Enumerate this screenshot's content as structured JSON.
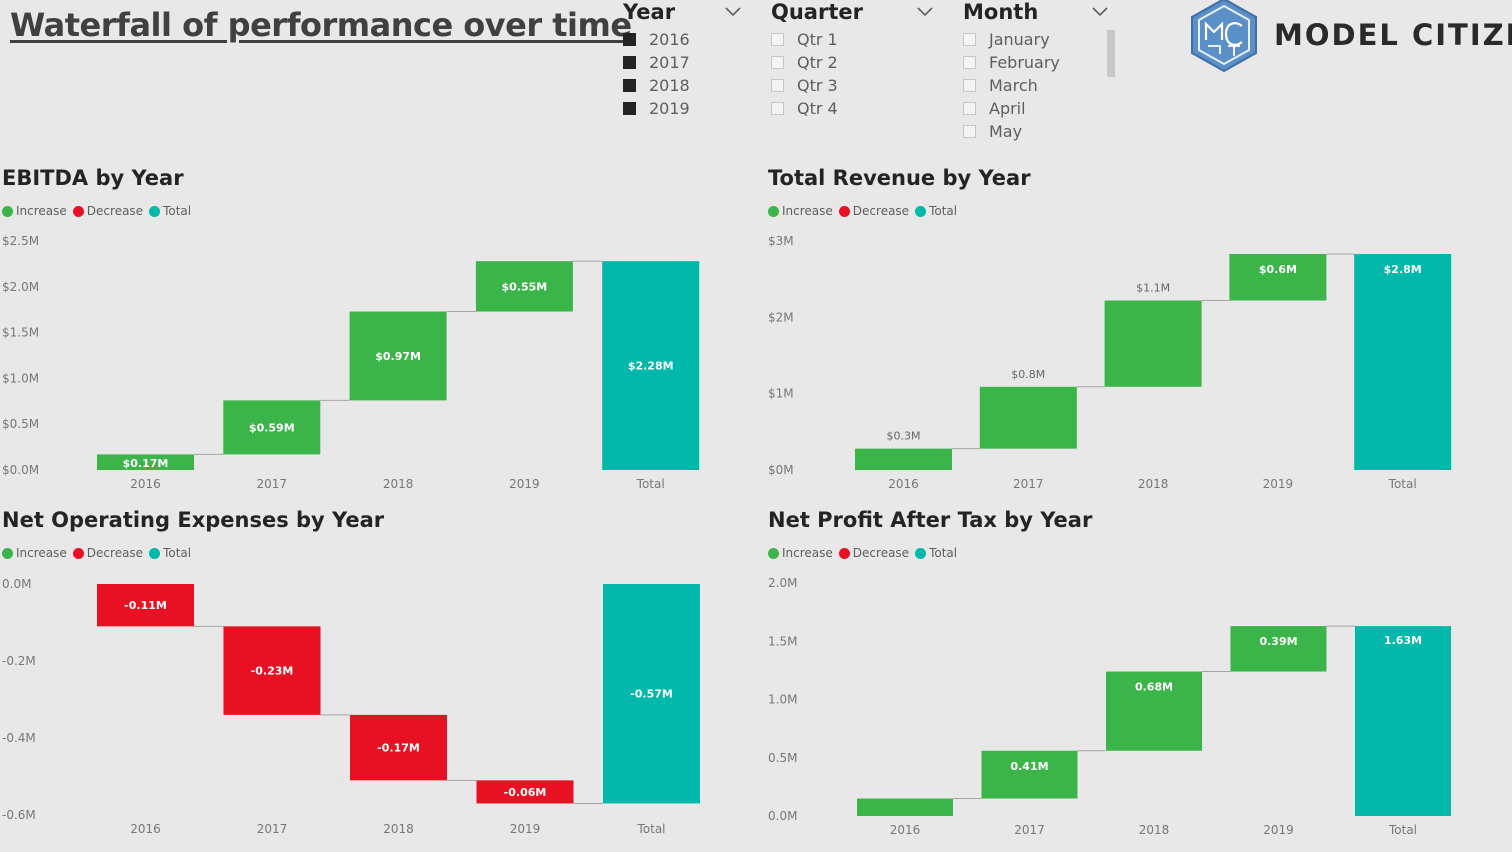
{
  "page": {
    "title": "Waterfall of performance over time"
  },
  "slicers": {
    "year": {
      "title": "Year",
      "items": [
        {
          "label": "2016",
          "checked": true
        },
        {
          "label": "2017",
          "checked": true
        },
        {
          "label": "2018",
          "checked": true
        },
        {
          "label": "2019",
          "checked": true
        }
      ]
    },
    "quarter": {
      "title": "Quarter",
      "items": [
        {
          "label": "Qtr 1",
          "checked": false
        },
        {
          "label": "Qtr 2",
          "checked": false
        },
        {
          "label": "Qtr 3",
          "checked": false
        },
        {
          "label": "Qtr 4",
          "checked": false
        }
      ]
    },
    "month": {
      "title": "Month",
      "items": [
        {
          "label": "January",
          "checked": false
        },
        {
          "label": "February",
          "checked": false
        },
        {
          "label": "March",
          "checked": false
        },
        {
          "label": "April",
          "checked": false
        },
        {
          "label": "May",
          "checked": false
        }
      ]
    }
  },
  "logo": {
    "text": "MODEL CITIZN",
    "icon": "model-citizn-logo-icon"
  },
  "colors": {
    "increase": "#3bb54a",
    "decrease": "#e81123",
    "total": "#01b8aa"
  },
  "legend_labels": {
    "increase": "Increase",
    "decrease": "Decrease",
    "total": "Total"
  },
  "chart_data": [
    {
      "id": "ebitda",
      "type": "waterfall",
      "title": "EBITDA by Year",
      "categories": [
        "2016",
        "2017",
        "2018",
        "2019",
        "Total"
      ],
      "values": [
        0.17,
        0.59,
        0.97,
        0.55,
        2.28
      ],
      "kinds": [
        "increase",
        "increase",
        "increase",
        "increase",
        "total"
      ],
      "data_labels": [
        "$0.17M",
        "$0.59M",
        "$0.97M",
        "$0.55M",
        "$2.28M"
      ],
      "y_ticks": [
        {
          "v": 2.5,
          "label": "$2.5M"
        },
        {
          "v": 2.0,
          "label": "$2.0M"
        },
        {
          "v": 1.5,
          "label": "$1.5M"
        },
        {
          "v": 1.0,
          "label": "$1.0M"
        },
        {
          "v": 0.5,
          "label": "$0.5M"
        },
        {
          "v": 0,
          "label": "$0.0M"
        }
      ],
      "ylim": [
        0,
        2.5
      ],
      "unit": "$M"
    },
    {
      "id": "revenue",
      "type": "waterfall",
      "title": "Total Revenue by Year",
      "categories": [
        "2016",
        "2017",
        "2018",
        "2019",
        "Total"
      ],
      "values": [
        0.28,
        0.81,
        1.13,
        0.61,
        2.83
      ],
      "kinds": [
        "increase",
        "increase",
        "increase",
        "increase",
        "total"
      ],
      "data_labels": [
        "$0.3M",
        "$0.8M",
        "$1.1M",
        "$0.6M",
        "$2.8M"
      ],
      "y_ticks": [
        {
          "v": 3,
          "label": "$3M"
        },
        {
          "v": 2,
          "label": "$2M"
        },
        {
          "v": 1,
          "label": "$1M"
        },
        {
          "v": 0,
          "label": "$0M"
        }
      ],
      "ylim": [
        0,
        3
      ],
      "unit": "$M"
    },
    {
      "id": "opex",
      "type": "waterfall",
      "title": "Net Operating Expenses by Year",
      "categories": [
        "2016",
        "2017",
        "2018",
        "2019",
        "Total"
      ],
      "values": [
        -0.11,
        -0.23,
        -0.17,
        -0.06,
        -0.57
      ],
      "kinds": [
        "decrease",
        "decrease",
        "decrease",
        "decrease",
        "total"
      ],
      "data_labels": [
        "-0.11M",
        "-0.23M",
        "-0.17M",
        "-0.06M",
        "-0.57M"
      ],
      "y_ticks": [
        {
          "v": 0,
          "label": "0.0M"
        },
        {
          "v": -0.2,
          "label": "-0.2M"
        },
        {
          "v": -0.4,
          "label": "-0.4M"
        },
        {
          "v": -0.6,
          "label": "-0.6M"
        }
      ],
      "ylim": [
        -0.6,
        0
      ],
      "unit": "M"
    },
    {
      "id": "npat",
      "type": "waterfall",
      "title": "Net Profit After Tax by Year",
      "categories": [
        "2016",
        "2017",
        "2018",
        "2019",
        "Total"
      ],
      "values": [
        0.15,
        0.41,
        0.68,
        0.39,
        1.63
      ],
      "kinds": [
        "increase",
        "increase",
        "increase",
        "increase",
        "total"
      ],
      "data_labels": [
        "",
        "0.41M",
        "0.68M",
        "0.39M",
        "1.63M"
      ],
      "y_ticks": [
        {
          "v": 2.0,
          "label": "2.0M"
        },
        {
          "v": 1.5,
          "label": "1.5M"
        },
        {
          "v": 1.0,
          "label": "1.0M"
        },
        {
          "v": 0.5,
          "label": "0.5M"
        },
        {
          "v": 0,
          "label": "0.0M"
        }
      ],
      "ylim": [
        0,
        2.0
      ],
      "unit": "M"
    }
  ]
}
